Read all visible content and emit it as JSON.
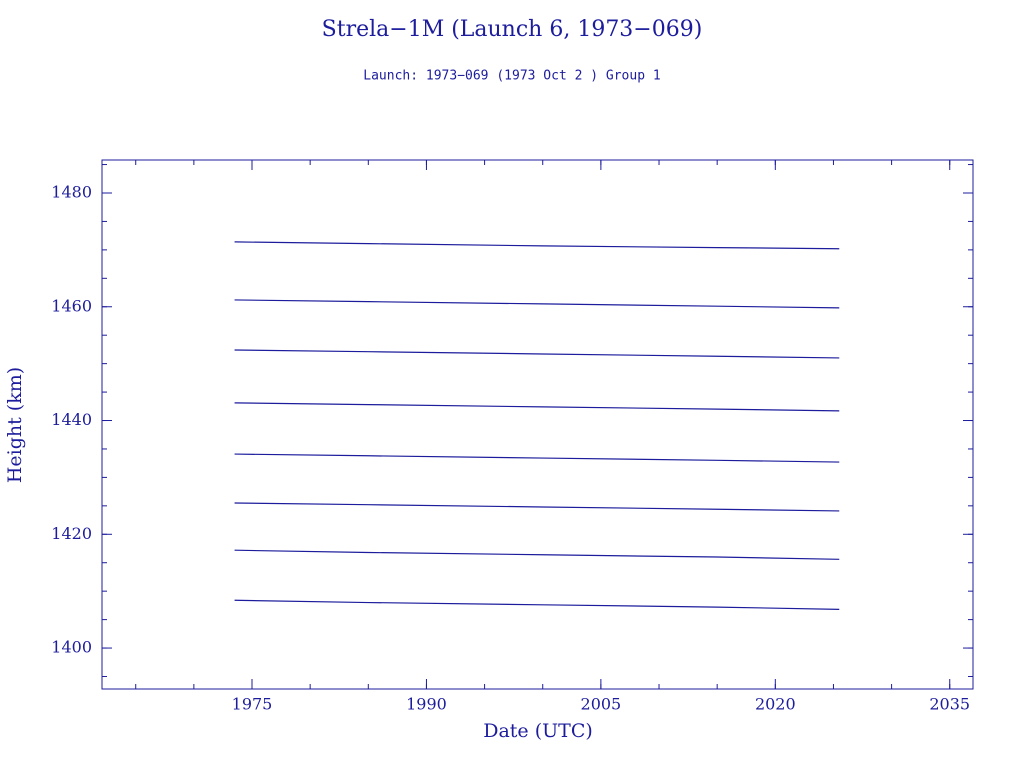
{
  "chart_data": {
    "type": "line",
    "title": "Strela−1M (Launch 6, 1973−069)",
    "subtitle": "Launch: 1973−069  (1973 Oct  2 )  Group 1",
    "x_label": "Date (UTC)",
    "y_label": "Height (km)",
    "x": [
      1973.5,
      1985,
      2000,
      2015,
      2025.5
    ],
    "series": [
      {
        "color": "#1c1c9c",
        "values": [
          1471.4,
          1471.1,
          1470.7,
          1470.4,
          1470.2
        ]
      },
      {
        "color": "#1c1c9c",
        "values": [
          1461.2,
          1460.9,
          1460.5,
          1460.1,
          1459.8
        ]
      },
      {
        "color": "#1c1c9c",
        "values": [
          1452.4,
          1452.1,
          1451.7,
          1451.3,
          1451.0
        ]
      },
      {
        "color": "#1c1c9c",
        "values": [
          1443.1,
          1442.8,
          1442.4,
          1442.0,
          1441.7
        ]
      },
      {
        "color": "#1c1c9c",
        "values": [
          1434.1,
          1433.8,
          1433.4,
          1433.0,
          1432.7
        ]
      },
      {
        "color": "#1c1c9c",
        "values": [
          1425.5,
          1425.2,
          1424.8,
          1424.4,
          1424.1
        ]
      },
      {
        "color": "#1c1c9c",
        "values": [
          1417.2,
          1416.8,
          1416.4,
          1416.0,
          1415.6
        ]
      },
      {
        "color": "#1c1c9c",
        "values": [
          1408.4,
          1408.0,
          1407.6,
          1407.2,
          1406.8
        ]
      }
    ],
    "xlim": [
      1962.1,
      2037
    ],
    "xticks": [
      1975,
      1990,
      2005,
      2020,
      2035
    ],
    "ylim": [
      1392.8,
      1485.8
    ],
    "yticks": [
      1400,
      1420,
      1440,
      1460,
      1480
    ]
  }
}
